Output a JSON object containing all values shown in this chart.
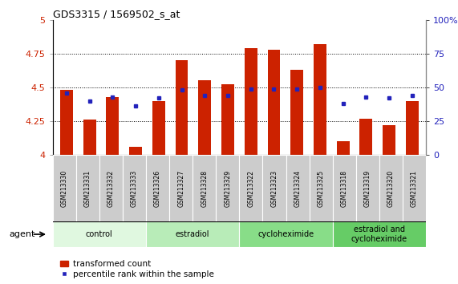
{
  "title": "GDS3315 / 1569502_s_at",
  "samples": [
    "GSM213330",
    "GSM213331",
    "GSM213332",
    "GSM213333",
    "GSM213326",
    "GSM213327",
    "GSM213328",
    "GSM213329",
    "GSM213322",
    "GSM213323",
    "GSM213324",
    "GSM213325",
    "GSM213318",
    "GSM213319",
    "GSM213320",
    "GSM213321"
  ],
  "bar_values": [
    4.48,
    4.26,
    4.43,
    4.06,
    4.4,
    4.7,
    4.55,
    4.52,
    4.79,
    4.78,
    4.63,
    4.82,
    4.1,
    4.27,
    4.22,
    4.4
  ],
  "percentile_values": [
    46,
    40,
    43,
    36,
    42,
    48,
    44,
    44,
    49,
    49,
    49,
    50,
    38,
    43,
    42,
    44
  ],
  "bar_color": "#cc2200",
  "dot_color": "#2222bb",
  "groups": [
    {
      "label": "control",
      "start": 0,
      "end": 4,
      "color": "#e0f8e0"
    },
    {
      "label": "estradiol",
      "start": 4,
      "end": 8,
      "color": "#b8ecb8"
    },
    {
      "label": "cycloheximide",
      "start": 8,
      "end": 12,
      "color": "#88dd88"
    },
    {
      "label": "estradiol and\ncycloheximide",
      "start": 12,
      "end": 16,
      "color": "#66cc66"
    }
  ],
  "ylim": [
    4.0,
    5.0
  ],
  "yticks_left": [
    4.0,
    4.25,
    4.5,
    4.75,
    5.0
  ],
  "yticks_right": [
    0,
    25,
    50,
    75,
    100
  ],
  "bar_bottom": 4.0,
  "bar_color_label": "transformed count",
  "dot_color_label": "percentile rank within the sample",
  "dotted_lines": [
    4.25,
    4.5,
    4.75
  ],
  "left_tick_color": "#cc2200",
  "right_tick_color": "#2222bb",
  "xtick_bg": "#cccccc",
  "xtick_border": "#888888"
}
